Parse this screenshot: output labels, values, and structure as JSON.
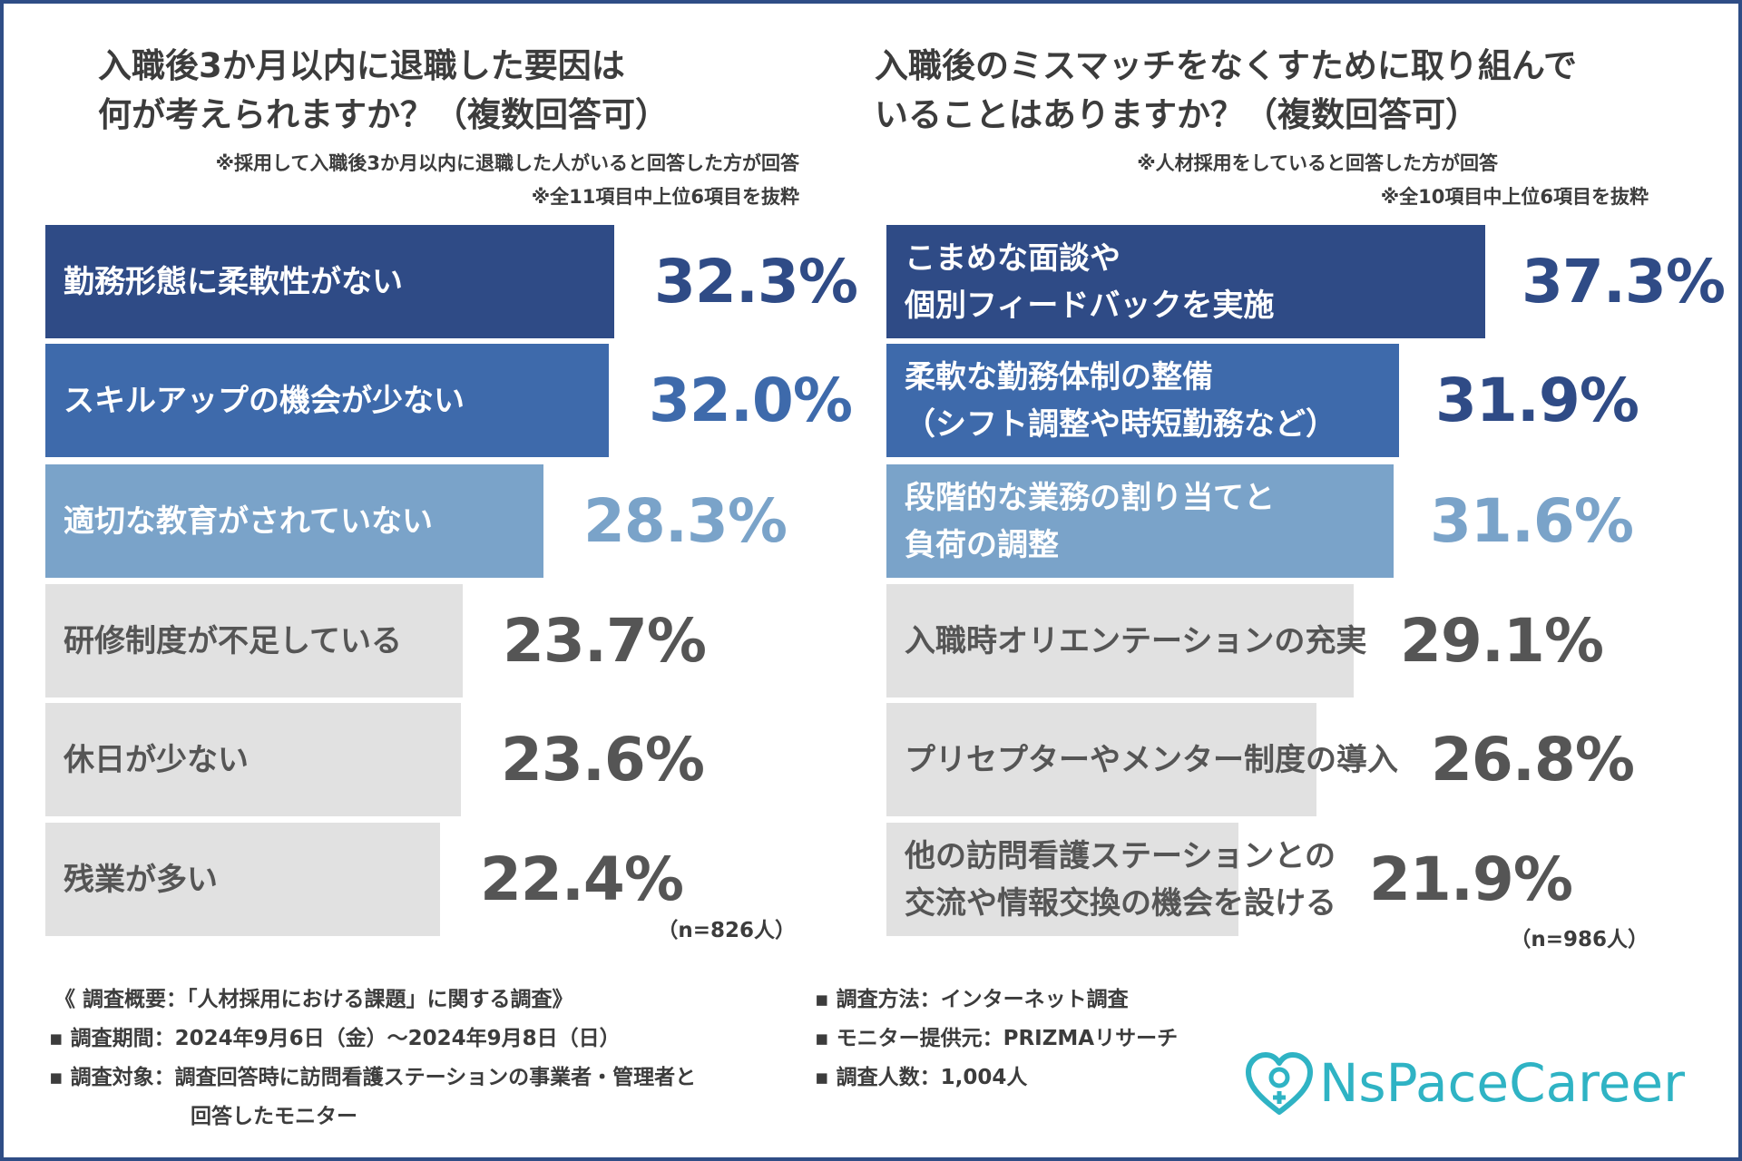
{
  "colors": {
    "rank1": "#2f4b86",
    "rank2": "#3e6aab",
    "rank3": "#7aa3c9",
    "rest": "#e1e1e1",
    "value_rest": "#555555",
    "label_rest": "#555555",
    "logo": "#2fb3c4"
  },
  "chart_data": [
    {
      "type": "bar",
      "orientation": "horizontal",
      "title": [
        "入職後3か月以内に退職した要因は",
        "何が考えられますか？（複数回答可）"
      ],
      "notes": [
        "※採用して入職後3か月以内に退職した人がいると回答した方が回答",
        "※全11項目中上位6項目を抜粋"
      ],
      "unit": "%",
      "n_note": "（n=826人）",
      "categories": [
        [
          "勤務形態に柔軟性がない"
        ],
        [
          "スキルアップの機会が少ない"
        ],
        [
          "適切な教育がされていない"
        ],
        [
          "研修制度が不足している"
        ],
        [
          "休日が少ない"
        ],
        [
          "残業が多い"
        ]
      ],
      "values": [
        32.3,
        32.0,
        28.3,
        23.7,
        23.6,
        22.4
      ],
      "value_labels": [
        "32.3%",
        "32.0%",
        "28.3%",
        "23.7%",
        "23.6%",
        "22.4%"
      ]
    },
    {
      "type": "bar",
      "orientation": "horizontal",
      "title": [
        "入職後のミスマッチをなくすために取り組んで",
        "いることはありますか？（複数回答可）"
      ],
      "notes": [
        "※人材採用をしていると回答した方が回答",
        "※全10項目中上位6項目を抜粋"
      ],
      "unit": "%",
      "n_note": "（n=986人）",
      "categories": [
        [
          "こまめな面談や",
          "個別フィードバックを実施"
        ],
        [
          "柔軟な勤務体制の整備",
          "（シフト調整や時短勤務など）"
        ],
        [
          "段階的な業務の割り当てと",
          "負荷の調整"
        ],
        [
          "入職時オリエンテーションの充実"
        ],
        [
          "プリセプターやメンター制度の導入"
        ],
        [
          "他の訪問看護ステーションとの",
          "交流や情報交換の機会を設ける"
        ]
      ],
      "values": [
        37.3,
        31.9,
        31.6,
        29.1,
        26.8,
        21.9
      ],
      "value_labels": [
        "37.3%",
        "31.9%",
        "31.6%",
        "29.1%",
        "26.8%",
        "21.9%"
      ]
    }
  ],
  "footer": {
    "left": [
      "《 調査概要：「人材採用における課題」に関する調査》",
      "▪ 調査期間：2024年9月6日（金）〜2024年9月8日（日）",
      "▪ 調査対象：調査回答時に訪問看護ステーションの事業者・管理者と",
      "回答したモニター"
    ],
    "right": [
      "▪ 調査方法：インターネット調査",
      "▪ モニター提供元：PRIZMAリサーチ",
      "▪ 調査人数：1,004人"
    ]
  },
  "logo": {
    "name": "heart-logo-icon",
    "text": "NsPaceCareer"
  }
}
